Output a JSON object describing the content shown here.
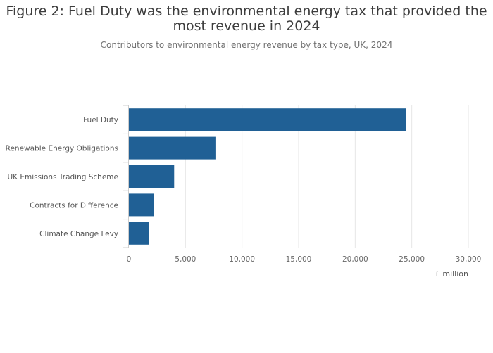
{
  "chart_data": {
    "type": "bar",
    "orientation": "horizontal",
    "title": "Figure 2: Fuel Duty was the environmental energy tax that provided the most revenue in 2024",
    "subtitle": "Contributors to environmental energy revenue by tax type, UK, 2024",
    "categories": [
      "Fuel Duty",
      "Renewable Energy Obligations",
      "UK Emissions Trading Scheme",
      "Contracts for Difference",
      "Climate Change Levy"
    ],
    "values": [
      24500,
      7650,
      4000,
      2200,
      1800
    ],
    "xlabel": "£ million",
    "ylabel": "",
    "xlim": [
      0,
      30000
    ],
    "xticks": [
      0,
      5000,
      10000,
      15000,
      20000,
      25000,
      30000
    ],
    "xtick_labels": [
      "0",
      "5,000",
      "10,000",
      "15,000",
      "20,000",
      "25,000",
      "30,000"
    ],
    "grid": true,
    "bar_color": "#206095"
  }
}
